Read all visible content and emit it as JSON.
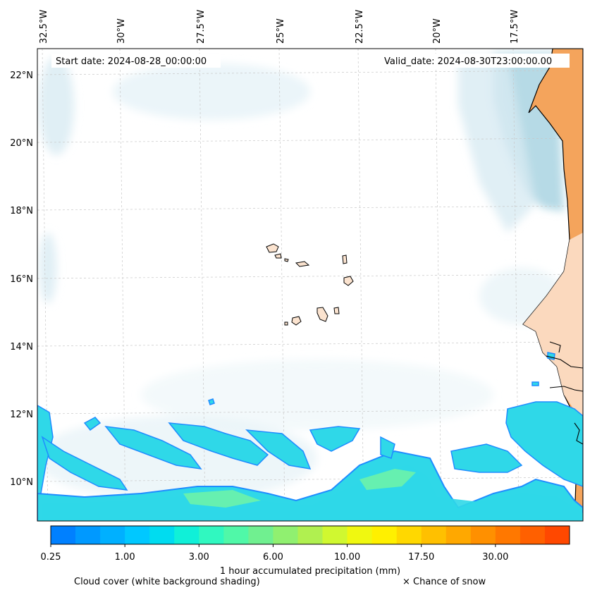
{
  "map": {
    "start_label": "Start date: 2024-08-28_00:00:00",
    "valid_label": "Valid_date: 2024-08-30T23:00:00.00",
    "lon_labels": [
      "32.5°W",
      "30°W",
      "27.5°W",
      "25°W",
      "22.5°W",
      "20°W",
      "17.5°W"
    ],
    "lat_labels": [
      "22°N",
      "20°N",
      "18°N",
      "16°N",
      "14°N",
      "12°N",
      "10°N"
    ],
    "colors": {
      "land_africa": "#f4a45c",
      "land_islands": "#fbe3cf",
      "coastline": "#000000",
      "cloud_light": "#d8ebf2",
      "cloud_mid": "#a9d3e2",
      "precip_outer": "#1f8cff",
      "precip_inner": "#2fd8e8",
      "precip_core": "#66f0b0"
    }
  },
  "colorbar": {
    "colors": [
      "#0080ff",
      "#0099ff",
      "#00b0ff",
      "#00c8ff",
      "#00dcf0",
      "#10f0d8",
      "#30f8c0",
      "#50f8a8",
      "#70f090",
      "#90f070",
      "#b0f050",
      "#d0f830",
      "#f0f810",
      "#fff000",
      "#ffd800",
      "#ffc000",
      "#ffa800",
      "#ff9000",
      "#ff7800",
      "#ff6000",
      "#ff4800"
    ],
    "tick_labels": [
      "0.25",
      "1.00",
      "3.00",
      "6.00",
      "10.00",
      "17.50",
      "30.00"
    ],
    "label": "1 hour accumulated precipitation (mm)"
  },
  "footer": {
    "cloud_label": "Cloud cover (white background shading)",
    "snow_label": "× Chance of snow"
  }
}
